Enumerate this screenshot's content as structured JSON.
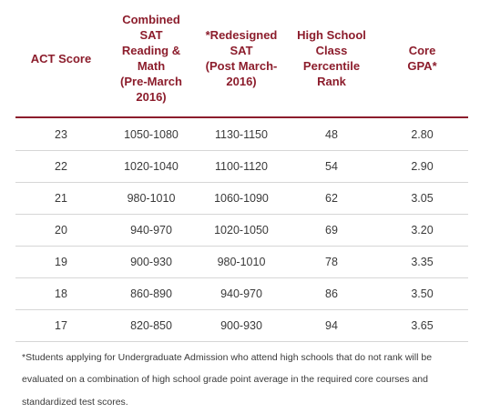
{
  "table": {
    "headers": [
      "ACT Score",
      "Combined\nSAT\nReading &\nMath\n(Pre-March\n2016)",
      "*Redesigned\nSAT\n(Post March-\n2016)",
      "High School\nClass\nPercentile\nRank",
      "Core\nGPA*"
    ],
    "rows": [
      [
        "23",
        "1050-1080",
        "1130-1150",
        "48",
        "2.80"
      ],
      [
        "22",
        "1020-1040",
        "1100-1120",
        "54",
        "2.90"
      ],
      [
        "21",
        "980-1010",
        "1060-1090",
        "62",
        "3.05"
      ],
      [
        "20",
        "940-970",
        "1020-1050",
        "69",
        "3.20"
      ],
      [
        "19",
        "900-930",
        "980-1010",
        "78",
        "3.35"
      ],
      [
        "18",
        "860-890",
        "940-970",
        "86",
        "3.50"
      ],
      [
        "17",
        "820-850",
        "900-930",
        "94",
        "3.65"
      ]
    ]
  },
  "footnote": "*Students applying for Undergraduate Admission who attend high schools that do not rank will be evaluated on a combination of high school grade point average in the required core courses and standardized test scores.",
  "colors": {
    "header_text": "#8c1d2c",
    "header_rule": "#8c1d2c",
    "row_rule": "#d6d6d6"
  }
}
